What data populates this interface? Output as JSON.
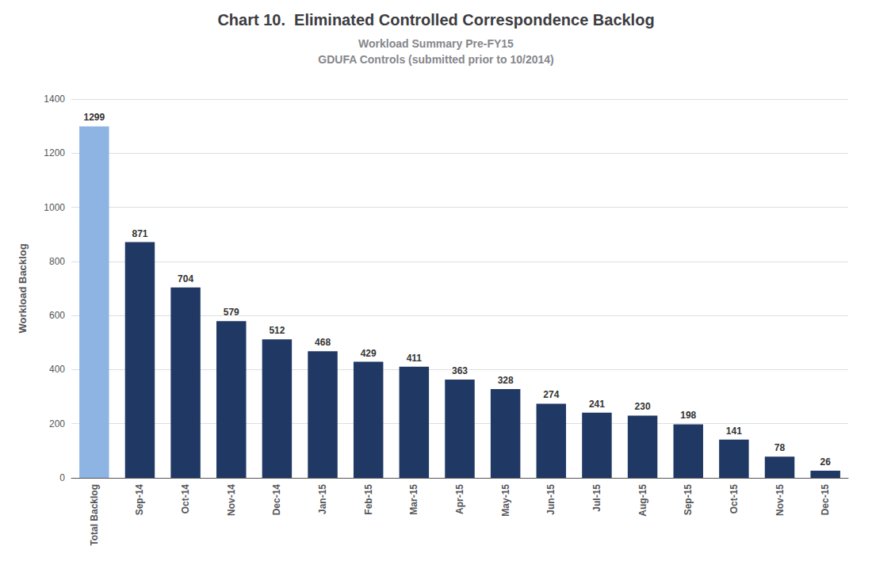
{
  "chart_data": {
    "type": "bar",
    "title": "Chart 10.  Eliminated Controlled Correspondence Backlog",
    "subtitle": [
      "Workload Summary Pre-FY15",
      "GDUFA Controls (submitted prior to 10/2014)"
    ],
    "categories": [
      "Total Backlog",
      "Sep-14",
      "Oct-14",
      "Nov-14",
      "Dec-14",
      "Jan-15",
      "Feb-15",
      "Mar-15",
      "Apr-15",
      "May-15",
      "Jun-15",
      "Jul-15",
      "Aug-15",
      "Sep-15",
      "Oct-15",
      "Nov-15",
      "Dec-15"
    ],
    "values": [
      1299,
      871,
      704,
      579,
      512,
      468,
      429,
      411,
      363,
      328,
      274,
      241,
      230,
      198,
      141,
      78,
      26
    ],
    "colors": [
      "#8db4e2",
      "#1f3864",
      "#1f3864",
      "#1f3864",
      "#1f3864",
      "#1f3864",
      "#1f3864",
      "#1f3864",
      "#1f3864",
      "#1f3864",
      "#1f3864",
      "#1f3864",
      "#1f3864",
      "#1f3864",
      "#1f3864",
      "#1f3864",
      "#1f3864"
    ],
    "ylabel": "Workload Backlog",
    "ylim": [
      0,
      1400
    ],
    "yticks": [
      0,
      200,
      400,
      600,
      800,
      1000,
      1200,
      1400
    ],
    "grid": true,
    "data_labels": true
  }
}
